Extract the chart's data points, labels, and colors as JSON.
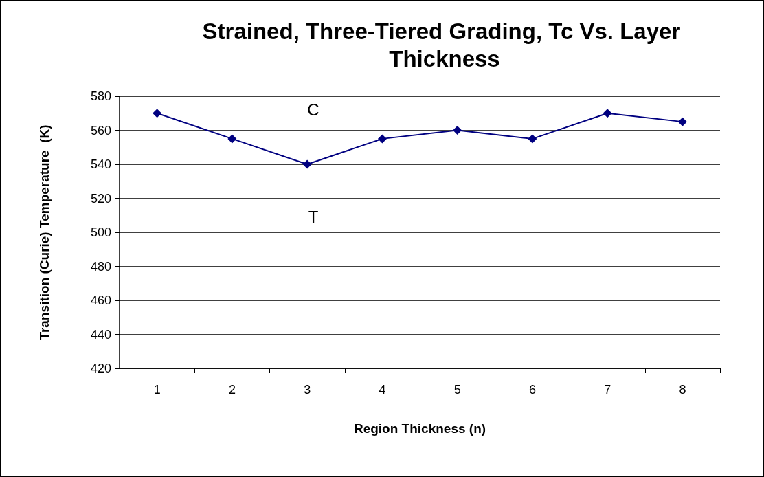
{
  "chart_data": {
    "type": "line",
    "title": "Strained, Three-Tiered Grading, Tc Vs. Layer Thickness",
    "xlabel": "Region Thickness (n)",
    "ylabel": "Transition (Curie) Temperature  (K)",
    "categories": [
      "1",
      "2",
      "3",
      "4",
      "5",
      "6",
      "7",
      "8"
    ],
    "series": [
      {
        "color": "#000080",
        "values": [
          570,
          555,
          540,
          555,
          560,
          555,
          570,
          565
        ]
      }
    ],
    "ylim": [
      420,
      580
    ],
    "yticks": [
      420,
      440,
      460,
      480,
      500,
      520,
      540,
      560,
      580
    ],
    "grid": "y",
    "marker": "diamond",
    "line_style": "solid",
    "annotations": [
      "C",
      "T"
    ]
  }
}
